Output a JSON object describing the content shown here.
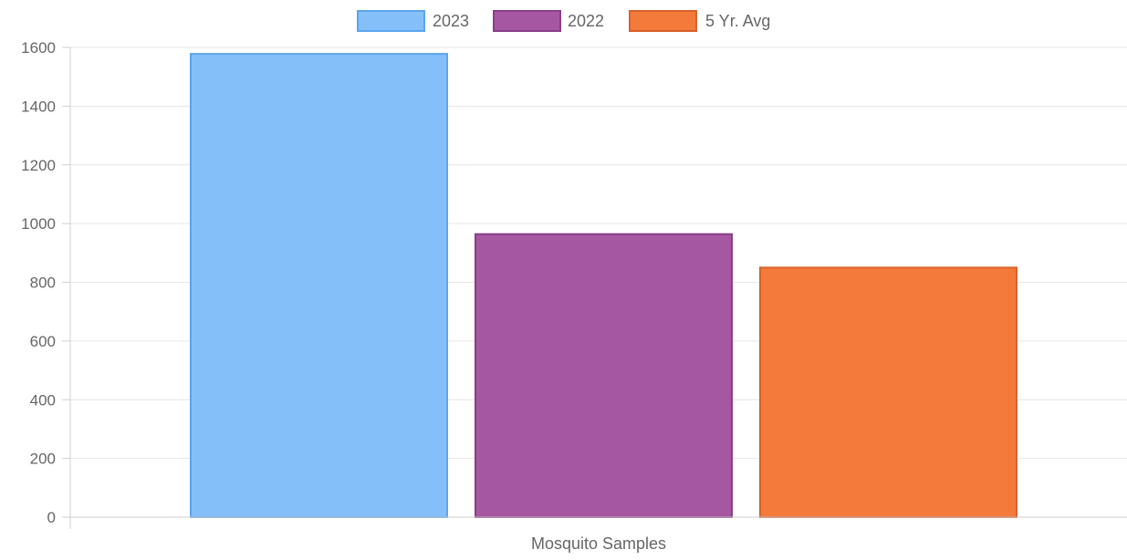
{
  "chart_data": {
    "type": "bar",
    "categories": [
      "Mosquito Samples"
    ],
    "series": [
      {
        "name": "2023",
        "values": [
          1578
        ],
        "color": "#85bffa",
        "border": "#5aa5ee"
      },
      {
        "name": "2022",
        "values": [
          964
        ],
        "color": "#a558a1",
        "border": "#8a3f86"
      },
      {
        "name": "5 Yr. Avg",
        "values": [
          850
        ],
        "color": "#f47a3b",
        "border": "#d8612a"
      }
    ],
    "title": "",
    "xlabel": "",
    "ylabel": "",
    "ylim": [
      0,
      1600
    ],
    "yticks": [
      0,
      200,
      400,
      600,
      800,
      1000,
      1200,
      1400,
      1600
    ],
    "grid": true,
    "legend": "top-center"
  }
}
